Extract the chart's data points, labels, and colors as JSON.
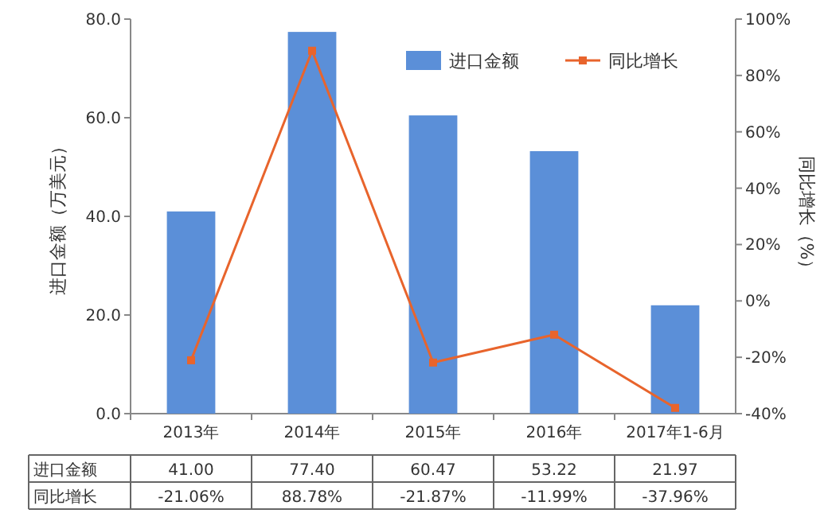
{
  "chart_data": {
    "type": "bar",
    "categories": [
      "2013年",
      "2014年",
      "2015年",
      "2016年",
      "2017年1-6月"
    ],
    "ylabel": "进口金额（万美元）",
    "y2label": "同比增长（%）",
    "ylim": [
      0,
      80
    ],
    "yticks": [
      {
        "value": 0,
        "label": "0.0"
      },
      {
        "value": 20,
        "label": "20.0"
      },
      {
        "value": 40,
        "label": "40.0"
      },
      {
        "value": 60,
        "label": "60.0"
      },
      {
        "value": 80,
        "label": "80.0"
      }
    ],
    "y2lim": [
      -40,
      100
    ],
    "y2ticks": [
      {
        "value": -40,
        "label": "-40%"
      },
      {
        "value": -20,
        "label": "-20%"
      },
      {
        "value": 0,
        "label": "0%"
      },
      {
        "value": 20,
        "label": "20%"
      },
      {
        "value": 40,
        "label": "40%"
      },
      {
        "value": 60,
        "label": "60%"
      },
      {
        "value": 80,
        "label": "80%"
      },
      {
        "value": 100,
        "label": "100%"
      }
    ],
    "legend": "top right",
    "series": [
      {
        "name": "进口金额",
        "color": "#5b8fd8",
        "values": [
          41.0,
          77.4,
          60.47,
          53.22,
          21.97
        ],
        "value_labels": [
          "41.00",
          "77.40",
          "60.47",
          "53.22",
          "21.97"
        ]
      },
      {
        "name": "同比增长",
        "type": "line",
        "axis": "y2",
        "color": "#e8642c",
        "marker": "square",
        "values": [
          -21.06,
          88.78,
          -21.87,
          -11.99,
          -37.96
        ],
        "value_labels": [
          "-21.06%",
          "88.78%",
          "-21.87%",
          "-11.99%",
          "-37.96%"
        ]
      }
    ]
  }
}
